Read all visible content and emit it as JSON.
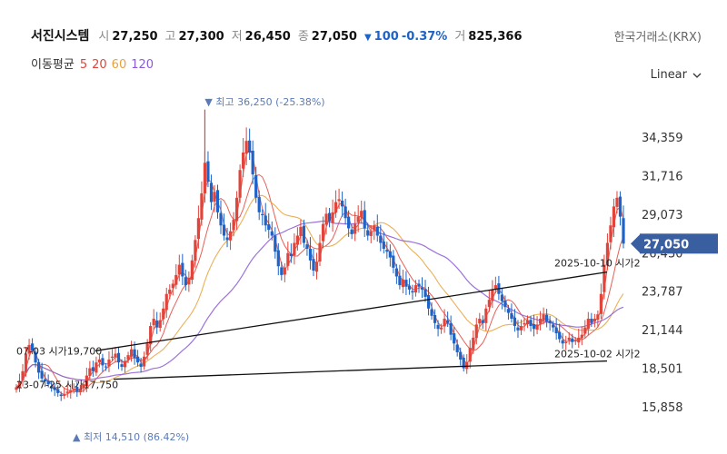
{
  "header": {
    "stock_name": "서진시스템",
    "open_label": "시",
    "open": "27,250",
    "high_label": "고",
    "high": "27,300",
    "low_label": "저",
    "low": "26,450",
    "close_label": "종",
    "close": "27,050",
    "change": "100",
    "change_pct": "-0.37%",
    "volume_label": "거",
    "volume": "825,366",
    "exchange": "한국거래소(KRX)"
  },
  "moving_average": {
    "title": "이동평균",
    "periods": [
      {
        "label": "5",
        "color": "#e0443a"
      },
      {
        "label": "20",
        "color": "#e0443a"
      },
      {
        "label": "60",
        "color": "#e8a23c"
      },
      {
        "label": "120",
        "color": "#8b5bd6"
      }
    ]
  },
  "scale_selector": "Linear",
  "colors": {
    "up": "#e0443a",
    "down": "#1e63c8",
    "ma5": "#e0443a",
    "ma20": "#e0443a",
    "ma60": "#e8a23c",
    "ma120": "#8b5bd6",
    "trendline": "#111111",
    "price_tag": "#3a5fa0",
    "max_annotation": "#5b7bb8"
  },
  "chart_data": {
    "type": "candlestick",
    "y_axis_ticks": [
      "34,359",
      "31,716",
      "29,073",
      "26,430",
      "23,787",
      "21,144",
      "18,501",
      "15,858"
    ],
    "ylim": [
      15000,
      37500
    ],
    "last_price": 27050,
    "last_price_label": "27,050",
    "max_annotation": {
      "label": "▼ 최고 36,250 (-25.38%)",
      "value": 36250
    },
    "min_annotation": {
      "label": "▲ 최저 14,510 (86.42%)",
      "value": 14510
    },
    "trendlines": [
      {
        "start_label": "07-03 시가19,700",
        "start_value": 19700,
        "end_label": "2025-10-10 시가2",
        "end_value": 25100
      },
      {
        "start_label": "23-07-25 시가17,750",
        "start_value": 17750,
        "end_label": "2025-10-02 시가2",
        "end_value": 19000
      }
    ],
    "close_series": [
      17200,
      17600,
      18300,
      19500,
      20100,
      19700,
      18900,
      18200,
      17800,
      17600,
      17400,
      17200,
      17000,
      16800,
      16600,
      16700,
      16900,
      17000,
      17100,
      16900,
      17100,
      17400,
      18000,
      18500,
      18300,
      18900,
      19100,
      18700,
      18600,
      19100,
      19300,
      19500,
      18900,
      18600,
      19000,
      19400,
      19800,
      19200,
      18900,
      18600,
      19300,
      20200,
      21400,
      21900,
      21300,
      21800,
      22600,
      23600,
      23900,
      24300,
      24900,
      25600,
      24800,
      24200,
      24700,
      25900,
      27300,
      28800,
      30500,
      32600,
      31300,
      29900,
      30600,
      29200,
      28300,
      27600,
      27300,
      27900,
      28700,
      30200,
      32100,
      33300,
      34100,
      33300,
      31800,
      30200,
      29200,
      29000,
      28300,
      28000,
      27600,
      26500,
      25500,
      24900,
      25400,
      26400,
      26200,
      27100,
      27600,
      28200,
      27100,
      26700,
      25900,
      25200,
      25800,
      27100,
      28400,
      29100,
      28600,
      29200,
      29900,
      30100,
      29600,
      28800,
      28100,
      27700,
      28400,
      28900,
      29300,
      28100,
      27600,
      27900,
      28300,
      27600,
      27100,
      26700,
      26500,
      26100,
      25400,
      24800,
      24200,
      24600,
      24100,
      23900,
      23700,
      24200,
      24100,
      23900,
      23400,
      22600,
      22100,
      21600,
      21200,
      21300,
      21900,
      21600,
      20800,
      20200,
      19600,
      19100,
      18500,
      18900,
      19900,
      20600,
      21500,
      21900,
      21600,
      22600,
      23200,
      23900,
      24200,
      23600,
      23100,
      22700,
      22300,
      21900,
      21400,
      21100,
      21400,
      21600,
      21800,
      21400,
      21200,
      21500,
      21900,
      22200,
      21700,
      21600,
      21300,
      20900,
      20500,
      20200,
      20300,
      20600,
      20300,
      20400,
      20600,
      20800,
      21300,
      21900,
      21600,
      21900,
      22200,
      23600,
      25600,
      27100,
      28300,
      29600,
      30200,
      28900,
      27050
    ]
  }
}
